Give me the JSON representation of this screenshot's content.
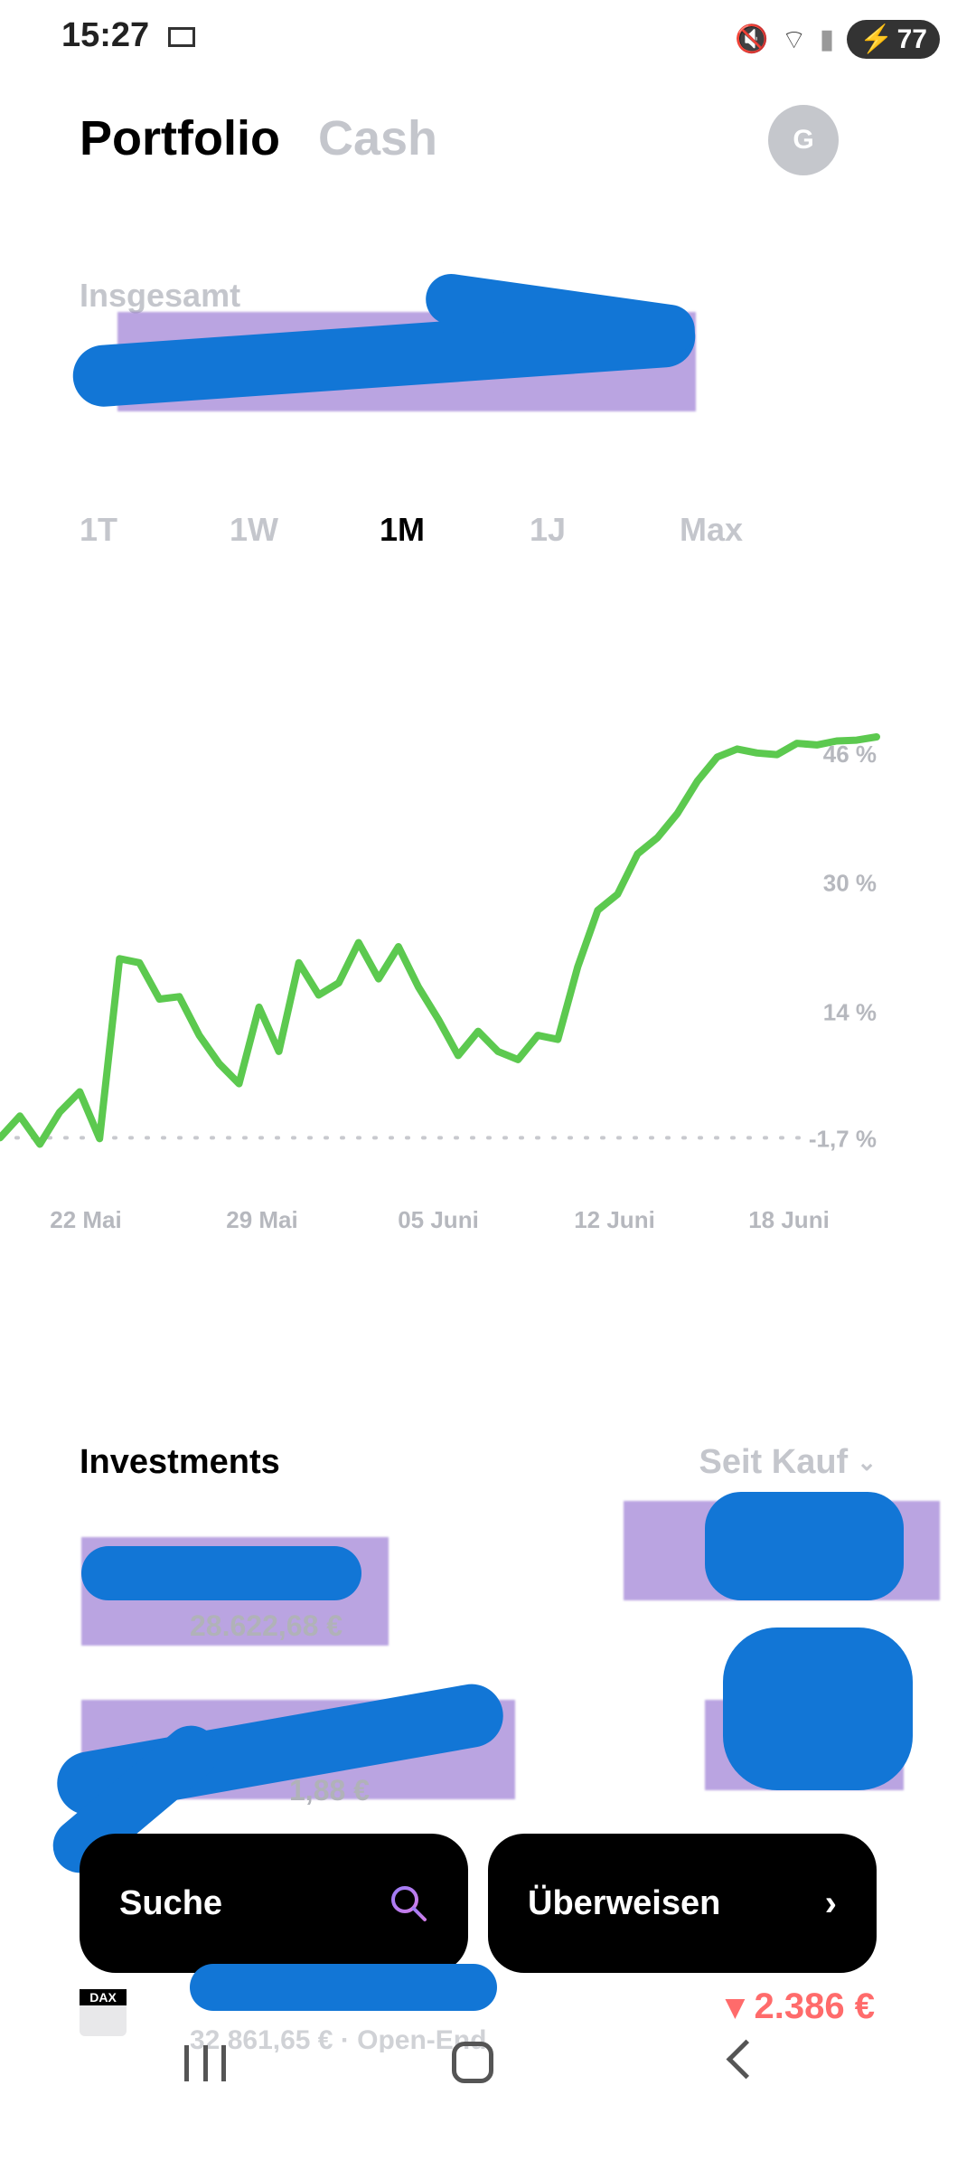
{
  "status_bar": {
    "time": "15:27",
    "battery": "77",
    "icons": [
      "mail-icon",
      "mute-icon",
      "wifi-icon",
      "signal-icon",
      "battery-icon"
    ]
  },
  "header": {
    "title": "Portfolio",
    "secondary_tab": "Cash",
    "avatar_initial": "G"
  },
  "totals": {
    "label": "Insgesamt"
  },
  "range_tabs": [
    "1T",
    "1W",
    "1M",
    "1J",
    "Max"
  ],
  "range_selected": "1M",
  "chart_data": {
    "type": "line",
    "x_labels": [
      "22 Mai",
      "29 Mai",
      "05 Juni",
      "12 Juni",
      "18 Juni"
    ],
    "y_tick_labels": [
      "46 %",
      "30 %",
      "14 %",
      "-1,7 %"
    ],
    "y_ticks": [
      46,
      30,
      14,
      -1.7
    ],
    "baseline": -1.7,
    "line_color": "#5cc94f",
    "values": [
      -1.7,
      1.0,
      -2.5,
      1.5,
      4.0,
      -1.8,
      20.5,
      20.0,
      15.5,
      15.8,
      11.0,
      7.5,
      5.0,
      14.5,
      9.0,
      20.0,
      16.0,
      17.5,
      22.5,
      18.0,
      22.0,
      17.0,
      13.0,
      8.5,
      11.5,
      9.0,
      8.0,
      11.0,
      10.5,
      19.5,
      26.5,
      28.5,
      33.5,
      35.5,
      38.5,
      42.5,
      45.5,
      46.5,
      46.0,
      45.8,
      47.2,
      47.0,
      47.5,
      47.6,
      48.0
    ]
  },
  "investments": {
    "title": "Investments",
    "sort_label": "Seit Kauf",
    "row1_value": "28.622,68 €",
    "row2_value": "1,88 €",
    "row3_loss": "▾ 2.386 €",
    "row3_sub": "32.861,65 € · Open-End",
    "row3_badge": "DAX"
  },
  "actions": {
    "search_label": "Suche",
    "transfer_label": "Überweisen"
  }
}
